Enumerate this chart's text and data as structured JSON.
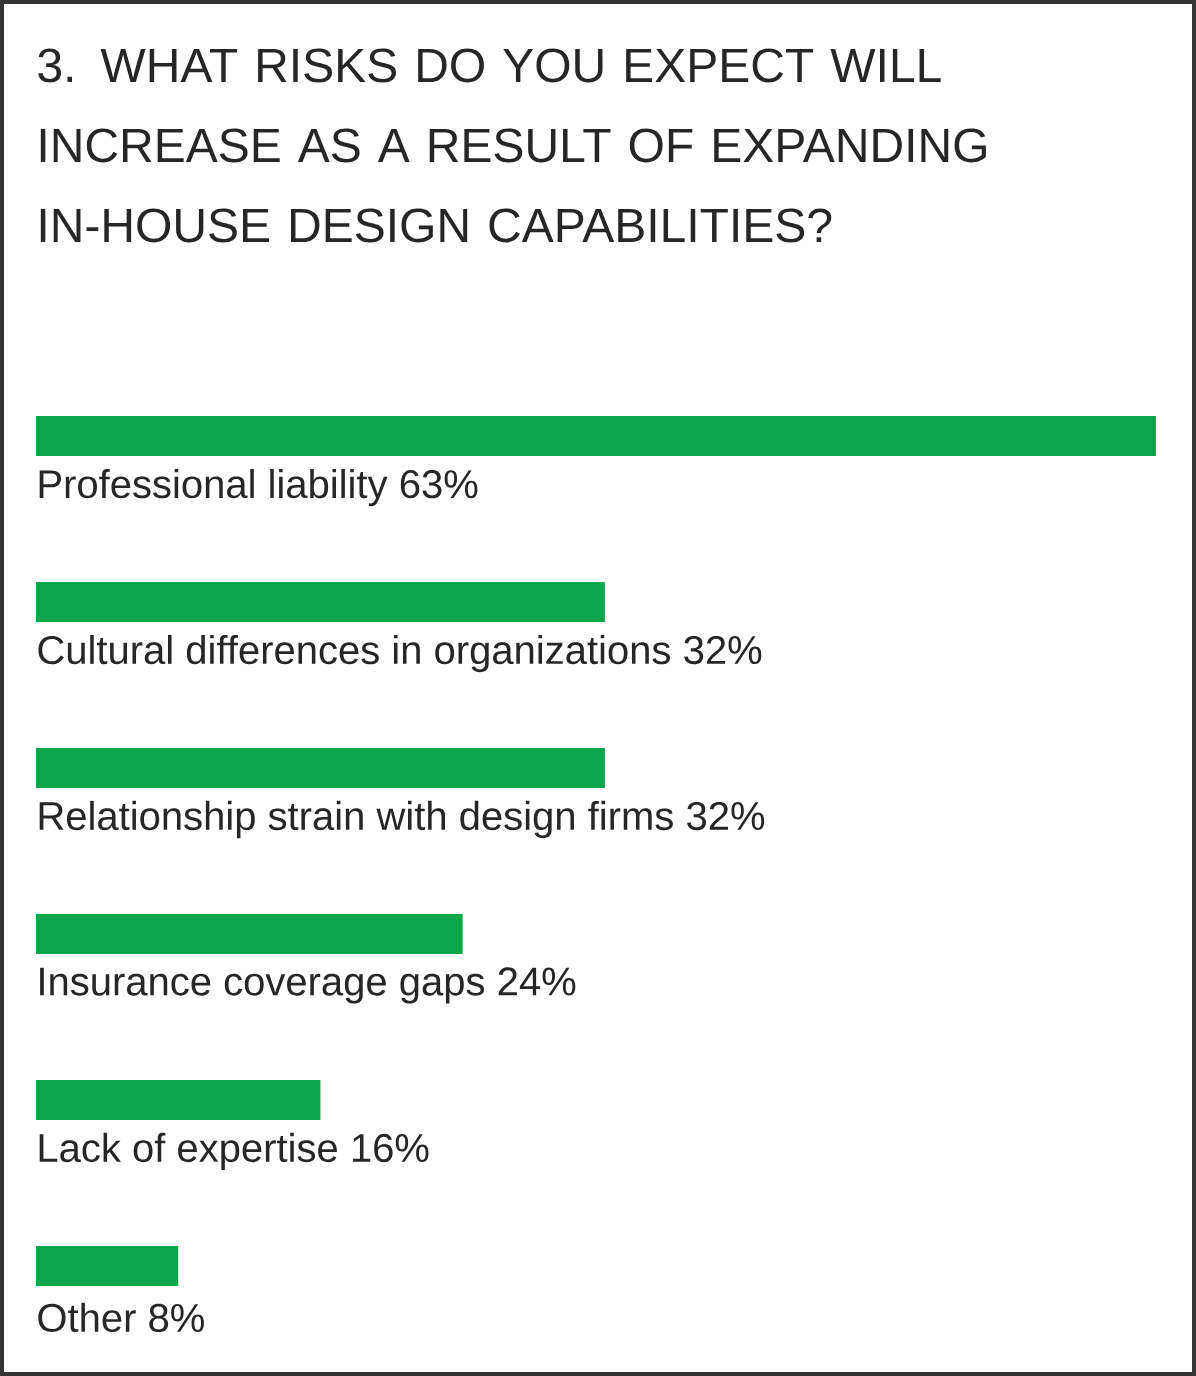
{
  "chart_data": {
    "type": "bar",
    "orientation": "horizontal",
    "title": "3. WHAT RISKS DO YOU EXPECT WILL INCREASE AS A RESULT OF EXPANDING IN-HOUSE DESIGN CAPABILITIES?",
    "categories": [
      "Professional liability",
      "Cultural differences in organizations",
      "Relationship strain with design firms",
      "Insurance coverage gaps",
      "Lack of expertise",
      "Other"
    ],
    "values": [
      63,
      32,
      32,
      24,
      16,
      8
    ],
    "value_labels": [
      "63%",
      "32%",
      "32%",
      "24%",
      "16%",
      "8%"
    ],
    "color": "#0ca64b"
  }
}
